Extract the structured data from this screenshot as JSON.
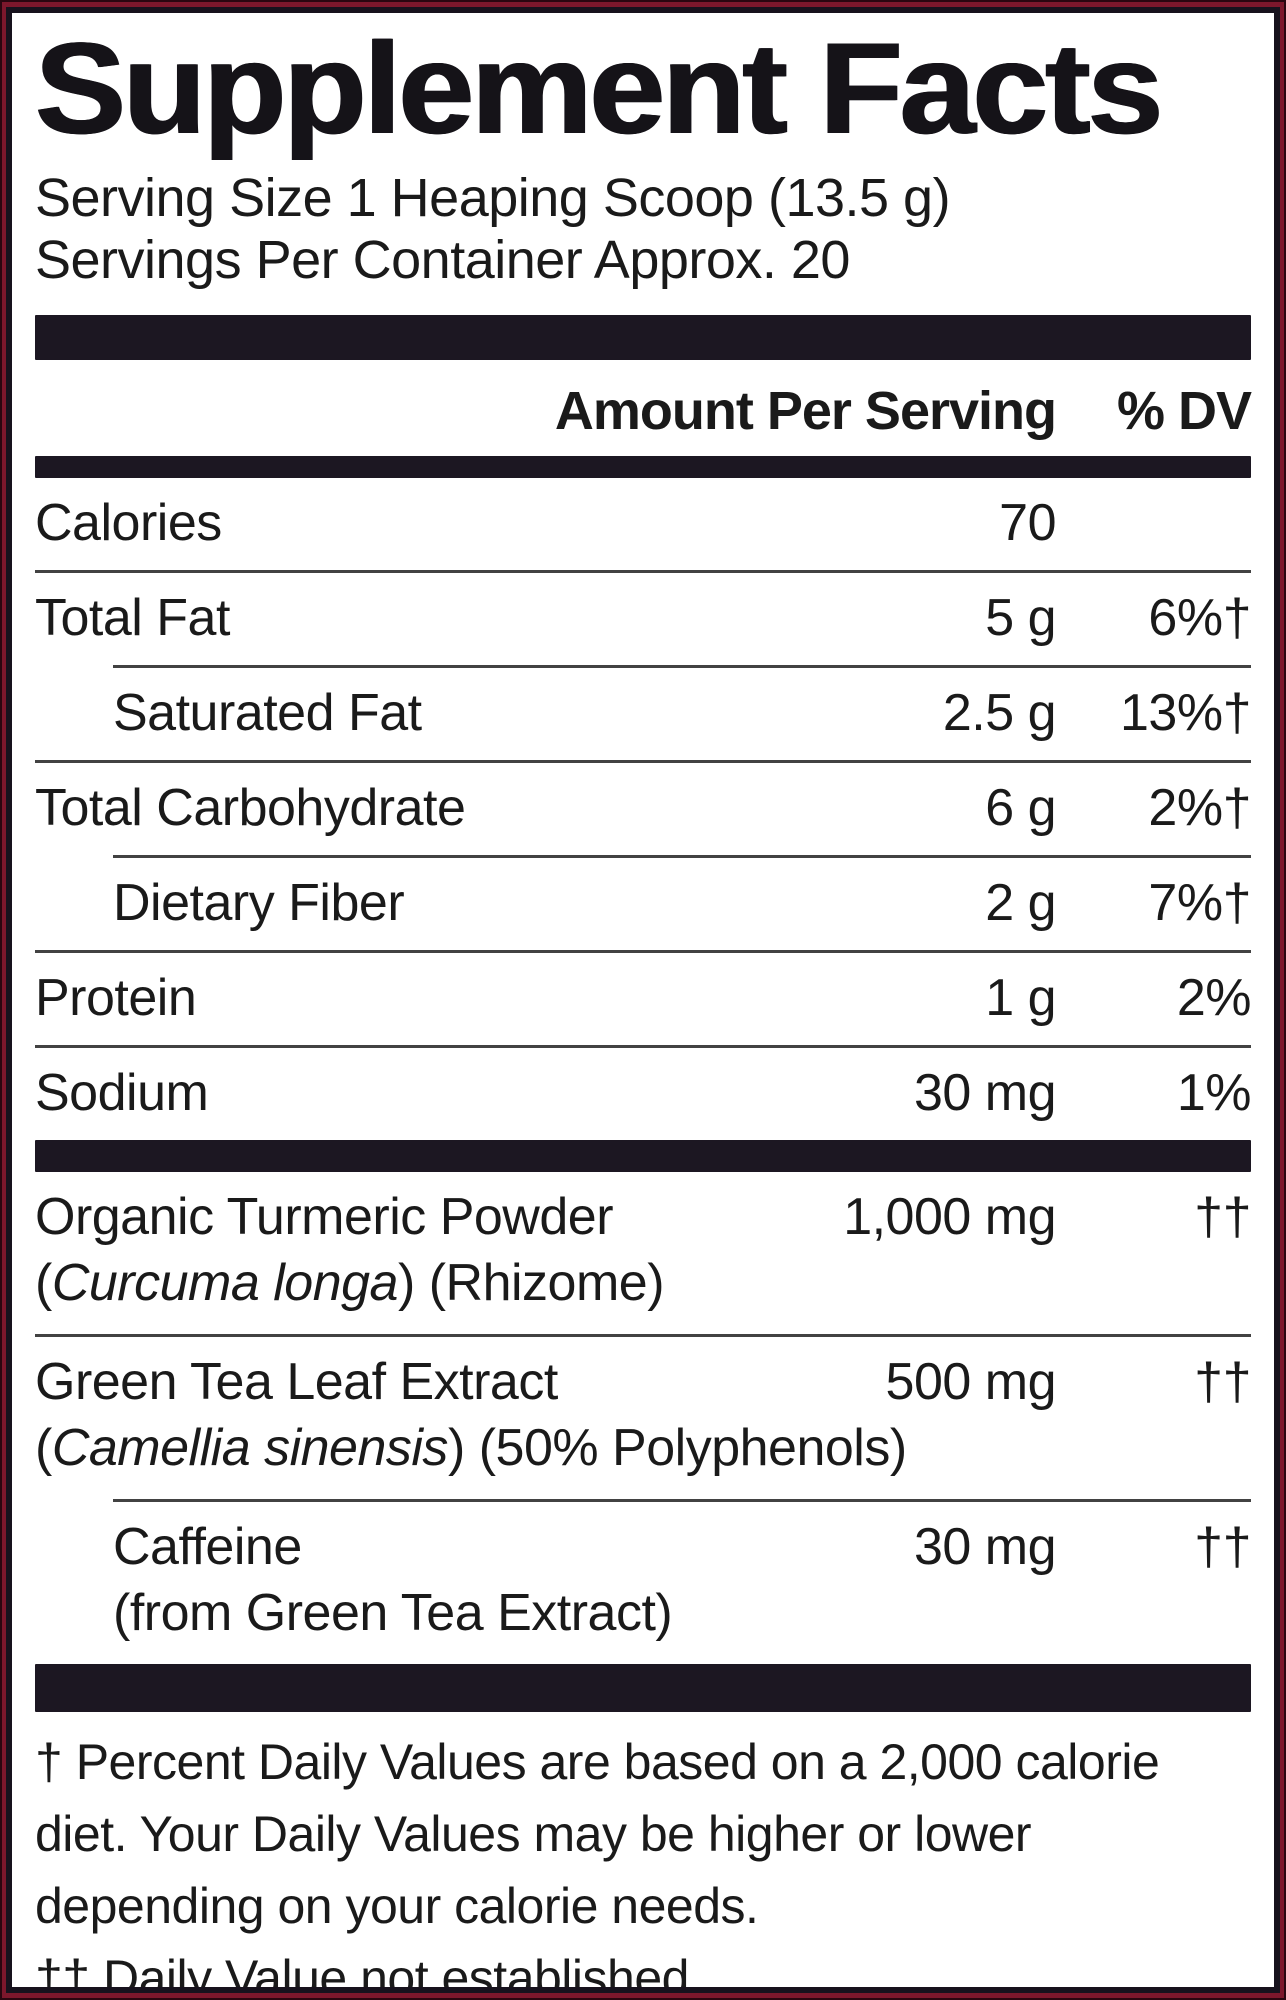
{
  "title": "Supplement Facts",
  "serving": {
    "size": "Serving Size 1 Heaping Scoop (13.5 g)",
    "per_container": "Servings Per Container Approx. 20"
  },
  "table": {
    "header": {
      "amount": "Amount Per Serving",
      "dv": "% DV"
    },
    "nutrients": [
      {
        "name": "Calories",
        "amount": "70",
        "dv": ""
      },
      {
        "name": "Total Fat",
        "amount": "5 g",
        "dv": "6%†"
      },
      {
        "name": "Saturated Fat",
        "amount": "2.5 g",
        "dv": "13%†"
      },
      {
        "name": "Total Carbohydrate",
        "amount": "6 g",
        "dv": "2%†"
      },
      {
        "name": "Dietary Fiber",
        "amount": "2 g",
        "dv": "7%†"
      },
      {
        "name": "Protein",
        "amount": "1 g",
        "dv": "2%"
      },
      {
        "name": "Sodium",
        "amount": "30 mg",
        "dv": "1%"
      }
    ],
    "botanicals": [
      {
        "name": "Organic Turmeric Powder",
        "amount": "1,000 mg",
        "dv": "††",
        "detail": {
          "pre": "(",
          "latin": "Curcuma longa",
          "post": ") (Rhizome)"
        }
      },
      {
        "name": "Green Tea Leaf Extract",
        "amount": "500 mg",
        "dv": "††",
        "detail": {
          "pre": "(",
          "latin": "Camellia sinensis",
          "post": ") (50% Polyphenols)"
        }
      },
      {
        "name": "Caffeine",
        "amount": "30 mg",
        "dv": "††",
        "detail": {
          "pre": "(from Green Tea Extract)",
          "latin": "",
          "post": ""
        }
      }
    ]
  },
  "footnotes": {
    "dagger": "† Percent Daily Values are based on a 2,000 calorie diet. Your Daily Values may be higher or lower depending on your calorie needs.",
    "double_dagger": "†† Daily Value not established."
  },
  "colors": {
    "background_maroon": "#7d172c",
    "rule_black": "#1c1722",
    "separator_gray": "#424242",
    "text": "#1a1a1a",
    "panel_white": "#ffffff"
  }
}
